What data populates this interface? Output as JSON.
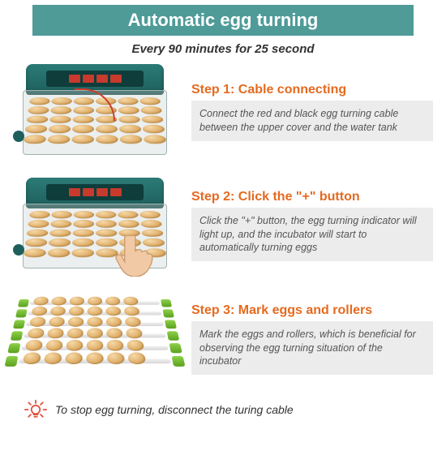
{
  "colors": {
    "band_bg": "#4e9b98",
    "accent": "#e56a1f",
    "body_box_bg": "#ececec",
    "body_text": "#555555",
    "incubator_teal": "#1e5f5c",
    "egg_light": "#f6d9a8",
    "egg_dark": "#dba65c",
    "roller_green": "#6eb52c",
    "bulb_red": "#e24b3b"
  },
  "header": {
    "title": "Automatic egg turning",
    "subtitle": "Every 90 minutes for 25 second"
  },
  "steps": [
    {
      "title": "Step 1: Cable connecting",
      "body": "Connect the red and black egg turning cable between the upper cover and the water tank",
      "image_kind": "incubator_cable"
    },
    {
      "title": "Step 2: Click the \"+\" button",
      "body": "Click the \"+\" button, the egg turning  indicator will light up, and the incubator will start to automatically turning eggs",
      "image_kind": "incubator_hand"
    },
    {
      "title": "Step 3: Mark eggs and rollers",
      "body": "Mark the eggs and rollers, which is beneficial for observing the egg turning situation of the incubator",
      "image_kind": "tray"
    }
  ],
  "footer": {
    "icon": "lightbulb-tip-icon",
    "text": "To stop egg turning, disconnect the turing cable"
  },
  "visual": {
    "egg_grid": {
      "cols": 6,
      "rows": 5
    },
    "tray": {
      "rows": 6,
      "eggs_per_row": 6
    },
    "fonts": {
      "title_pt": 22,
      "step_title_pt": 16,
      "body_pt": 12.5,
      "footer_pt": 14
    }
  }
}
